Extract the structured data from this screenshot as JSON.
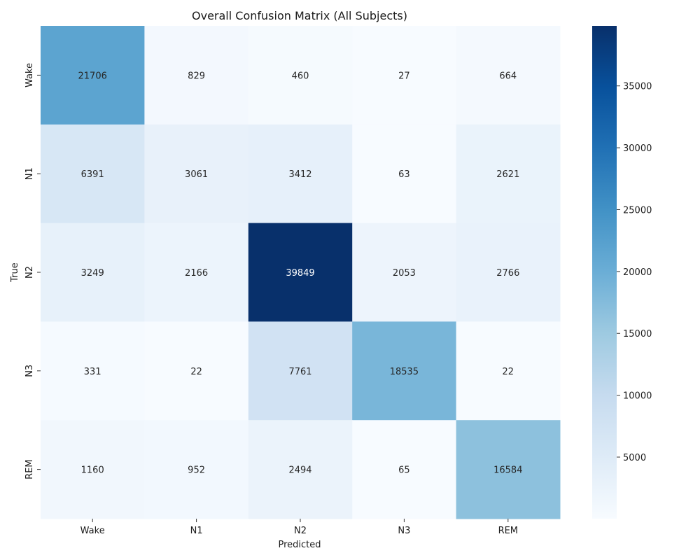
{
  "chart_data": {
    "type": "heatmap",
    "title": "Overall Confusion Matrix (All Subjects)",
    "xlabel": "Predicted",
    "ylabel": "True",
    "x_categories": [
      "Wake",
      "N1",
      "N2",
      "N3",
      "REM"
    ],
    "y_categories": [
      "Wake",
      "N1",
      "N2",
      "N3",
      "REM"
    ],
    "values": [
      [
        21706,
        829,
        460,
        27,
        664
      ],
      [
        6391,
        3061,
        3412,
        63,
        2621
      ],
      [
        3249,
        2166,
        39849,
        2053,
        2766
      ],
      [
        331,
        22,
        7761,
        18535,
        22
      ],
      [
        1160,
        952,
        2494,
        65,
        16584
      ]
    ],
    "colormap": "Blues",
    "colorbar": {
      "vmin": 22,
      "vmax": 39849,
      "ticks": [
        5000,
        10000,
        15000,
        20000,
        25000,
        30000,
        35000
      ]
    },
    "colors": {
      "low": "#f7fbff",
      "high": "#08306b",
      "text_dark": "#262626",
      "text_light": "#ffffff"
    }
  }
}
